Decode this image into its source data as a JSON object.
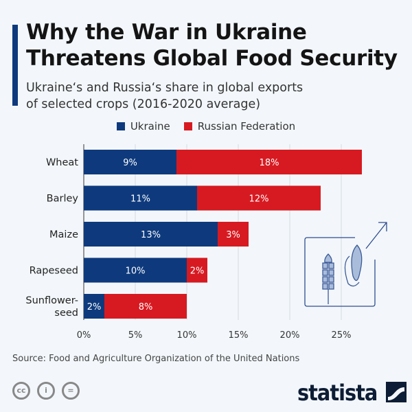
{
  "title": "Why the War in Ukraine Threatens Global Food Security",
  "title_lines": [
    "Why the War in Ukraine",
    "Threatens Global Food Security"
  ],
  "subtitle_lines": [
    "Ukraine‘s and Russia‘s share in global exports",
    "of selected crops (2016-2020 average)"
  ],
  "source": "Source: Food and Agriculture Organization of the United Nations",
  "logo": "statista",
  "license_icons": [
    "cc-icon",
    "attribution-icon",
    "no-derivatives-icon"
  ],
  "colors": {
    "ukraine": "#0e3a7d",
    "russia": "#d71a21",
    "accent": "#0e3a7d"
  },
  "chart_data": {
    "type": "bar",
    "orientation": "horizontal",
    "stacked": true,
    "categories": [
      "Wheat",
      "Barley",
      "Maize",
      "Rapeseed",
      "Sunflower-seed"
    ],
    "category_label_lines": [
      [
        "Wheat"
      ],
      [
        "Barley"
      ],
      [
        "Maize"
      ],
      [
        "Rapeseed"
      ],
      [
        "Sunflower-",
        "seed"
      ]
    ],
    "series": [
      {
        "name": "Ukraine",
        "values": [
          9,
          11,
          13,
          10,
          2
        ],
        "labels": [
          "9%",
          "11%",
          "13%",
          "10%",
          "2%"
        ]
      },
      {
        "name": "Russian Federation",
        "values": [
          18,
          12,
          3,
          2,
          8
        ],
        "labels": [
          "18%",
          "12%",
          "3%",
          "2%",
          "8%"
        ]
      }
    ],
    "xlim": [
      0,
      27
    ],
    "xticks": [
      0,
      5,
      10,
      15,
      20,
      25
    ],
    "xtick_labels": [
      "0%",
      "5%",
      "10%",
      "15%",
      "20%",
      "25%"
    ],
    "grid": true,
    "legend": "top-center"
  }
}
